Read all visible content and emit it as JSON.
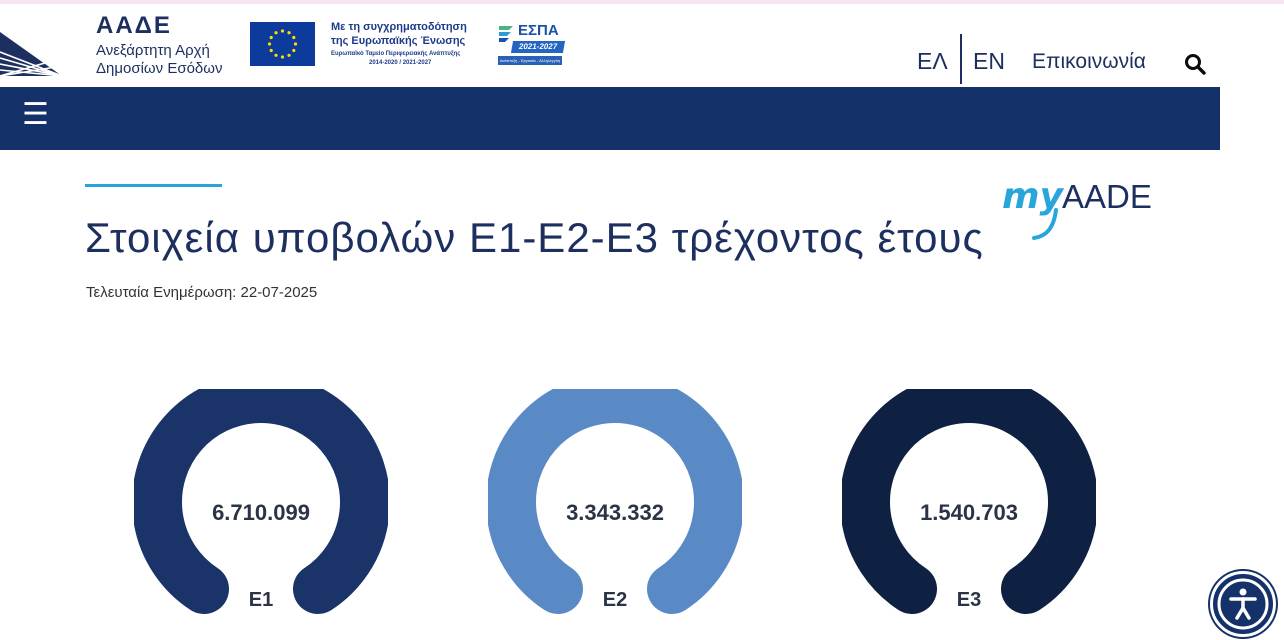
{
  "header": {
    "org_abbrev": "ΑΑΔΕ",
    "org_line1": "Ανεξάρτητη Αρχή",
    "org_line2": "Δημοσίων Εσόδων",
    "eu_line1": "Με τη συγχρηματοδότηση",
    "eu_line2": "της Ευρωπαϊκής Ένωσης",
    "eu_line3": "Ευρωπαϊκό Ταμείο Περιφερειακής Ανάπτυξης",
    "eu_line4": "2014-2020 / 2021-2027",
    "espa_title": "ΕΣΠΑ",
    "espa_years": "2021-2027",
    "espa_small": "Ανάπτυξη - Εργασία - Αλληλεγγύη",
    "lang_el": "ΕΛ",
    "lang_en": "EN",
    "contact": "Επικοινωνία"
  },
  "nav": {
    "menu_icon": "☰"
  },
  "main": {
    "title": "Στοιχεία υποβολών Ε1-Ε2-Ε3 τρέχοντος έτους",
    "updated": "Τελευταία Ενημέρωση: 22-07-2025",
    "brand_my": "my",
    "brand_aade": "AADE"
  },
  "gauges": [
    {
      "value": "6.710.099",
      "label": "Ε1",
      "color": "#1a3368"
    },
    {
      "value": "3.343.332",
      "label": "Ε2",
      "color": "#5a8ac5"
    },
    {
      "value": "1.540.703",
      "label": "Ε3",
      "color": "#0f2142"
    }
  ],
  "colors": {
    "navbar": "#15316a",
    "accent": "#28a6dc",
    "text": "#1d2f5f"
  }
}
